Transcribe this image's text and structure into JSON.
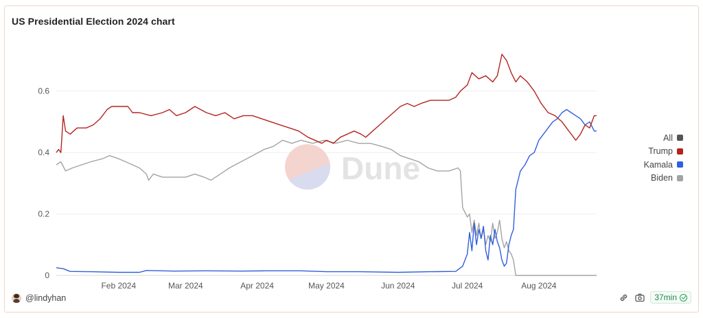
{
  "chart_data": {
    "type": "line",
    "title": "US Presidential Election 2024 chart",
    "xlabel": "",
    "ylabel": "",
    "x_ticks": [
      "Feb 2024",
      "Mar 2024",
      "Apr 2024",
      "May 2024",
      "Jun 2024",
      "Jul 2024",
      "Aug 2024"
    ],
    "y_ticks": [
      0,
      0.2,
      0.4,
      0.6
    ],
    "xlim": [
      "2024-01-05",
      "2024-08-26"
    ],
    "ylim": [
      0,
      0.72
    ],
    "grid": true,
    "legend_position": "right",
    "legend_entries": [
      "All",
      "Trump",
      "Kamala",
      "Biden"
    ],
    "series": [
      {
        "name": "All",
        "color": "#555555",
        "points": []
      },
      {
        "name": "Trump",
        "color": "#b3241f",
        "points": [
          [
            "2024-01-05",
            0.4
          ],
          [
            "2024-01-06",
            0.41
          ],
          [
            "2024-01-07",
            0.4
          ],
          [
            "2024-01-08",
            0.52
          ],
          [
            "2024-01-09",
            0.47
          ],
          [
            "2024-01-11",
            0.46
          ],
          [
            "2024-01-14",
            0.48
          ],
          [
            "2024-01-18",
            0.48
          ],
          [
            "2024-01-21",
            0.49
          ],
          [
            "2024-01-24",
            0.51
          ],
          [
            "2024-01-27",
            0.54
          ],
          [
            "2024-01-29",
            0.55
          ],
          [
            "2024-02-01",
            0.55
          ],
          [
            "2024-02-05",
            0.55
          ],
          [
            "2024-02-07",
            0.53
          ],
          [
            "2024-02-10",
            0.53
          ],
          [
            "2024-02-15",
            0.52
          ],
          [
            "2024-02-20",
            0.53
          ],
          [
            "2024-02-23",
            0.54
          ],
          [
            "2024-02-26",
            0.52
          ],
          [
            "2024-03-01",
            0.53
          ],
          [
            "2024-03-05",
            0.55
          ],
          [
            "2024-03-10",
            0.53
          ],
          [
            "2024-03-14",
            0.52
          ],
          [
            "2024-03-18",
            0.53
          ],
          [
            "2024-03-22",
            0.51
          ],
          [
            "2024-03-26",
            0.52
          ],
          [
            "2024-03-30",
            0.52
          ],
          [
            "2024-04-03",
            0.51
          ],
          [
            "2024-04-07",
            0.5
          ],
          [
            "2024-04-11",
            0.49
          ],
          [
            "2024-04-15",
            0.48
          ],
          [
            "2024-04-19",
            0.47
          ],
          [
            "2024-04-23",
            0.45
          ],
          [
            "2024-04-26",
            0.44
          ],
          [
            "2024-04-29",
            0.43
          ],
          [
            "2024-05-01",
            0.44
          ],
          [
            "2024-05-04",
            0.43
          ],
          [
            "2024-05-07",
            0.45
          ],
          [
            "2024-05-10",
            0.46
          ],
          [
            "2024-05-13",
            0.47
          ],
          [
            "2024-05-16",
            0.46
          ],
          [
            "2024-05-18",
            0.45
          ],
          [
            "2024-05-21",
            0.47
          ],
          [
            "2024-05-24",
            0.49
          ],
          [
            "2024-05-27",
            0.51
          ],
          [
            "2024-05-30",
            0.53
          ],
          [
            "2024-06-02",
            0.55
          ],
          [
            "2024-06-05",
            0.56
          ],
          [
            "2024-06-08",
            0.55
          ],
          [
            "2024-06-11",
            0.56
          ],
          [
            "2024-06-15",
            0.57
          ],
          [
            "2024-06-19",
            0.57
          ],
          [
            "2024-06-23",
            0.57
          ],
          [
            "2024-06-26",
            0.58
          ],
          [
            "2024-06-28",
            0.6
          ],
          [
            "2024-07-01",
            0.62
          ],
          [
            "2024-07-03",
            0.66
          ],
          [
            "2024-07-06",
            0.64
          ],
          [
            "2024-07-09",
            0.65
          ],
          [
            "2024-07-12",
            0.63
          ],
          [
            "2024-07-14",
            0.65
          ],
          [
            "2024-07-16",
            0.72
          ],
          [
            "2024-07-18",
            0.7
          ],
          [
            "2024-07-20",
            0.66
          ],
          [
            "2024-07-22",
            0.63
          ],
          [
            "2024-07-24",
            0.65
          ],
          [
            "2024-07-27",
            0.63
          ],
          [
            "2024-07-30",
            0.6
          ],
          [
            "2024-08-02",
            0.56
          ],
          [
            "2024-08-05",
            0.53
          ],
          [
            "2024-08-08",
            0.52
          ],
          [
            "2024-08-11",
            0.5
          ],
          [
            "2024-08-14",
            0.47
          ],
          [
            "2024-08-17",
            0.44
          ],
          [
            "2024-08-19",
            0.46
          ],
          [
            "2024-08-21",
            0.49
          ],
          [
            "2024-08-23",
            0.48
          ],
          [
            "2024-08-25",
            0.52
          ],
          [
            "2024-08-26",
            0.52
          ]
        ]
      },
      {
        "name": "Kamala",
        "color": "#2f5fdc",
        "points": [
          [
            "2024-01-05",
            0.025
          ],
          [
            "2024-01-08",
            0.022
          ],
          [
            "2024-01-11",
            0.013
          ],
          [
            "2024-01-20",
            0.012
          ],
          [
            "2024-02-01",
            0.01
          ],
          [
            "2024-02-10",
            0.01
          ],
          [
            "2024-02-13",
            0.016
          ],
          [
            "2024-02-25",
            0.014
          ],
          [
            "2024-03-10",
            0.015
          ],
          [
            "2024-03-25",
            0.014
          ],
          [
            "2024-04-05",
            0.015
          ],
          [
            "2024-04-20",
            0.015
          ],
          [
            "2024-05-01",
            0.012
          ],
          [
            "2024-05-15",
            0.012
          ],
          [
            "2024-06-01",
            0.01
          ],
          [
            "2024-06-15",
            0.012
          ],
          [
            "2024-06-26",
            0.013
          ],
          [
            "2024-06-29",
            0.03
          ],
          [
            "2024-07-01",
            0.07
          ],
          [
            "2024-07-02",
            0.14
          ],
          [
            "2024-07-03",
            0.08
          ],
          [
            "2024-07-04",
            0.17
          ],
          [
            "2024-07-05",
            0.1
          ],
          [
            "2024-07-06",
            0.15
          ],
          [
            "2024-07-07",
            0.12
          ],
          [
            "2024-07-08",
            0.16
          ],
          [
            "2024-07-09",
            0.08
          ],
          [
            "2024-07-10",
            0.05
          ],
          [
            "2024-07-11",
            0.13
          ],
          [
            "2024-07-12",
            0.1
          ],
          [
            "2024-07-13",
            0.15
          ],
          [
            "2024-07-14",
            0.11
          ],
          [
            "2024-07-15",
            0.09
          ],
          [
            "2024-07-16",
            0.05
          ],
          [
            "2024-07-17",
            0.03
          ],
          [
            "2024-07-18",
            0.04
          ],
          [
            "2024-07-19",
            0.1
          ],
          [
            "2024-07-20",
            0.13
          ],
          [
            "2024-07-21",
            0.15
          ],
          [
            "2024-07-22",
            0.28
          ],
          [
            "2024-07-24",
            0.34
          ],
          [
            "2024-07-26",
            0.36
          ],
          [
            "2024-07-28",
            0.39
          ],
          [
            "2024-07-30",
            0.4
          ],
          [
            "2024-08-01",
            0.44
          ],
          [
            "2024-08-03",
            0.46
          ],
          [
            "2024-08-05",
            0.48
          ],
          [
            "2024-08-07",
            0.5
          ],
          [
            "2024-08-09",
            0.51
          ],
          [
            "2024-08-11",
            0.53
          ],
          [
            "2024-08-13",
            0.54
          ],
          [
            "2024-08-15",
            0.53
          ],
          [
            "2024-08-17",
            0.52
          ],
          [
            "2024-08-19",
            0.51
          ],
          [
            "2024-08-21",
            0.49
          ],
          [
            "2024-08-23",
            0.5
          ],
          [
            "2024-08-25",
            0.47
          ],
          [
            "2024-08-26",
            0.47
          ]
        ]
      },
      {
        "name": "Biden",
        "color": "#a3a3a3",
        "points": [
          [
            "2024-01-05",
            0.36
          ],
          [
            "2024-01-07",
            0.37
          ],
          [
            "2024-01-09",
            0.34
          ],
          [
            "2024-01-12",
            0.35
          ],
          [
            "2024-01-16",
            0.36
          ],
          [
            "2024-01-20",
            0.37
          ],
          [
            "2024-01-25",
            0.38
          ],
          [
            "2024-01-28",
            0.39
          ],
          [
            "2024-02-01",
            0.38
          ],
          [
            "2024-02-04",
            0.37
          ],
          [
            "2024-02-07",
            0.36
          ],
          [
            "2024-02-10",
            0.35
          ],
          [
            "2024-02-13",
            0.33
          ],
          [
            "2024-02-14",
            0.31
          ],
          [
            "2024-02-16",
            0.33
          ],
          [
            "2024-02-20",
            0.32
          ],
          [
            "2024-02-25",
            0.32
          ],
          [
            "2024-03-01",
            0.32
          ],
          [
            "2024-03-05",
            0.33
          ],
          [
            "2024-03-09",
            0.32
          ],
          [
            "2024-03-12",
            0.31
          ],
          [
            "2024-03-16",
            0.33
          ],
          [
            "2024-03-20",
            0.35
          ],
          [
            "2024-03-25",
            0.37
          ],
          [
            "2024-03-30",
            0.39
          ],
          [
            "2024-04-04",
            0.41
          ],
          [
            "2024-04-08",
            0.42
          ],
          [
            "2024-04-12",
            0.44
          ],
          [
            "2024-04-16",
            0.43
          ],
          [
            "2024-04-20",
            0.44
          ],
          [
            "2024-04-25",
            0.43
          ],
          [
            "2024-04-30",
            0.44
          ],
          [
            "2024-05-05",
            0.43
          ],
          [
            "2024-05-10",
            0.44
          ],
          [
            "2024-05-15",
            0.43
          ],
          [
            "2024-05-20",
            0.43
          ],
          [
            "2024-05-25",
            0.42
          ],
          [
            "2024-05-29",
            0.41
          ],
          [
            "2024-06-02",
            0.39
          ],
          [
            "2024-06-06",
            0.38
          ],
          [
            "2024-06-10",
            0.37
          ],
          [
            "2024-06-14",
            0.35
          ],
          [
            "2024-06-18",
            0.34
          ],
          [
            "2024-06-23",
            0.34
          ],
          [
            "2024-06-27",
            0.35
          ],
          [
            "2024-06-28",
            0.34
          ],
          [
            "2024-06-29",
            0.22
          ],
          [
            "2024-07-01",
            0.19
          ],
          [
            "2024-07-02",
            0.2
          ],
          [
            "2024-07-03",
            0.14
          ],
          [
            "2024-07-04",
            0.18
          ],
          [
            "2024-07-05",
            0.13
          ],
          [
            "2024-07-06",
            0.17
          ],
          [
            "2024-07-07",
            0.12
          ],
          [
            "2024-07-08",
            0.15
          ],
          [
            "2024-07-09",
            0.1
          ],
          [
            "2024-07-10",
            0.13
          ],
          [
            "2024-07-11",
            0.11
          ],
          [
            "2024-07-12",
            0.17
          ],
          [
            "2024-07-13",
            0.12
          ],
          [
            "2024-07-14",
            0.14
          ],
          [
            "2024-07-15",
            0.18
          ],
          [
            "2024-07-16",
            0.12
          ],
          [
            "2024-07-17",
            0.09
          ],
          [
            "2024-07-18",
            0.11
          ],
          [
            "2024-07-19",
            0.08
          ],
          [
            "2024-07-20",
            0.07
          ],
          [
            "2024-07-21",
            0.05
          ],
          [
            "2024-07-22",
            0.0
          ],
          [
            "2024-08-26",
            0.0
          ]
        ]
      }
    ]
  },
  "watermark": "Dune",
  "footer": {
    "author": "@lindyhan",
    "age_badge": "37min"
  },
  "icons": {
    "avatar": "user-avatar",
    "embed": "link-icon",
    "screenshot": "camera-icon",
    "fresh": "check-circle-icon"
  }
}
